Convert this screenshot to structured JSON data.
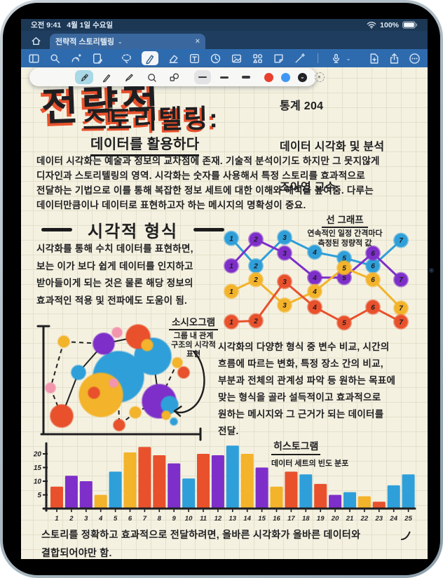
{
  "status_bar": {
    "time": "오전 9:41",
    "date": "4월 1일 수요일",
    "battery": "100%"
  },
  "tab_bar": {
    "title": "전략적 스토리텔링",
    "close": "×",
    "chevron": "⌄"
  },
  "palette": {
    "red": "#e8512c",
    "yellow": "#f3b32a",
    "blue": "#2f9fd9",
    "purple": "#7e2fc9",
    "pink": "#f295ad",
    "ink": "#1f1f21"
  },
  "note": {
    "title_line1": "전략적",
    "title_line2": "스토리텔링:",
    "subtitle": "데이터를 활용하다",
    "course": {
      "line1": "통계 204",
      "line2": "데이터 시각화 및 분석",
      "line3": "조아영 교수"
    },
    "intro": "데이터 시각화는 예술과 정보의 교차점에 존재. 기술적 분석이기도 하지만 그 못지않게\n디자인과 스토리텔링의 영역. 시각화는 숫자를 사용해서 특정 스토리를 효과적으로\n전달하는 기법으로 이를 통해 복잡한 정보 세트에 대한 이해와 해석을 높여줌. 다루는\n데이터만큼이나 데이터로 표현하고자 하는 메시지의 명확성이 중요.",
    "heading": "시각적 형식",
    "body2": "시각화를 통해 수치 데이터를 표현하면,\n보는 이가 보다 쉽게 데이터를 인지하고\n받아들이게 되는 것은 물론 해당 정보의\n효과적인 적용 및 전파에도 도움이 됨.",
    "line_chart": {
      "title": "선 그래프",
      "caption1": "연속적인 일정 간격마다",
      "caption2": "측정된 정량적 값"
    },
    "sociogram": {
      "title": "소시오그램",
      "cap1": "그룹 내 관계",
      "cap2": "구조의 시각적",
      "cap3": "표현"
    },
    "body3": "시각화의 다양한 형식 중 변수 비교, 시간의\n흐름에 따르는 변화, 특정 장소 간의 비교,\n부분과 전체의 관계성 파악 등 원하는 목표에\n맞는 형식을 골라 설득적이고 효과적으로\n원하는 메시지와 그 근거가 되는 데이터를\n전달.",
    "histogram": {
      "title": "히스토그램",
      "caption": "데이터 세트의 빈도 분포"
    },
    "outro": "스토리를 정확하고 효과적으로 전달하려면, 올바른 시각화가 올바른 데이터와\n결합되어야만 함."
  },
  "chart_data": [
    {
      "type": "line",
      "title": "선 그래프",
      "annotation": "연속적인 일정 간격마다 측정된 정량적 값",
      "x": [
        1,
        2,
        3,
        4,
        5,
        6,
        7
      ],
      "point_labels": [
        "1",
        "2",
        "3",
        "4",
        "5",
        "6",
        "7"
      ],
      "series": [
        {
          "name": "blue",
          "color_key": "blue",
          "values": [
            9.8,
            7.0,
            9.9,
            8.4,
            7.8,
            7.0,
            9.6
          ]
        },
        {
          "name": "purple",
          "color_key": "purple",
          "values": [
            7.0,
            9.7,
            8.3,
            5.8,
            5.8,
            8.3,
            5.6
          ]
        },
        {
          "name": "yellow",
          "color_key": "yellow",
          "values": [
            4.4,
            5.6,
            3.0,
            4.4,
            6.8,
            5.6,
            2.7
          ]
        },
        {
          "name": "red",
          "color_key": "red",
          "values": [
            1.3,
            1.4,
            5.4,
            2.8,
            1.2,
            2.8,
            1.3
          ]
        }
      ],
      "legend": "none",
      "grid": "paper-grid"
    },
    {
      "type": "network",
      "title": "소시오그램",
      "annotation": "그룹 내 관계 구조의 시각적 표현",
      "nodes": [
        [
          125,
          92,
          36,
          "blue"
        ],
        [
          100,
          118,
          31,
          "yellow"
        ],
        [
          174,
          63,
          26,
          "blue"
        ],
        [
          183,
          127,
          24,
          "purple"
        ],
        [
          153,
          35,
          17,
          "red"
        ],
        [
          104,
          45,
          15,
          "purple"
        ],
        [
          44,
          148,
          16,
          "red"
        ],
        [
          198,
          132,
          12,
          "blue"
        ],
        [
          68,
          86,
          10,
          "blue"
        ],
        [
          90,
          115,
          8,
          "red"
        ],
        [
          118,
          101,
          6,
          "pink"
        ],
        [
          166,
          47,
          8,
          "yellow"
        ],
        [
          123,
          29,
          7,
          "pink"
        ],
        [
          47,
          42,
          8,
          "yellow"
        ],
        [
          28,
          108,
          7,
          "pink"
        ],
        [
          209,
          72,
          7,
          "yellow"
        ],
        [
          218,
          86,
          8,
          "red"
        ],
        [
          149,
          143,
          8,
          "yellow"
        ],
        [
          126,
          161,
          8,
          "red"
        ],
        [
          193,
          147,
          6,
          "yellow"
        ],
        [
          204,
          156,
          5,
          "blue"
        ]
      ],
      "solid_edges": [
        [
          44,
          148,
          68,
          86
        ],
        [
          68,
          86,
          104,
          45
        ],
        [
          104,
          45,
          153,
          35
        ],
        [
          104,
          45,
          125,
          92
        ],
        [
          174,
          63,
          183,
          127
        ],
        [
          125,
          92,
          100,
          118
        ],
        [
          153,
          35,
          174,
          63
        ]
      ],
      "dashed_edges": [
        [
          47,
          42,
          104,
          45
        ],
        [
          47,
          42,
          28,
          108
        ],
        [
          28,
          108,
          44,
          148
        ],
        [
          125,
          118,
          126,
          161
        ],
        [
          149,
          143,
          126,
          161
        ],
        [
          149,
          143,
          183,
          127
        ],
        [
          183,
          127,
          209,
          72
        ],
        [
          209,
          72,
          218,
          86
        ]
      ]
    },
    {
      "type": "bar",
      "title": "히스토그램",
      "annotation": "데이터 세트의 빈도 분포",
      "categories": [
        1,
        2,
        3,
        4,
        5,
        6,
        7,
        8,
        9,
        10,
        11,
        12,
        13,
        14,
        15,
        16,
        17,
        18,
        19,
        20,
        21,
        22,
        23,
        24,
        25
      ],
      "values": [
        8,
        12,
        10,
        5,
        13.5,
        20.5,
        22.5,
        19.5,
        16.5,
        11,
        20,
        19.5,
        23,
        20,
        15,
        8,
        13.5,
        12.5,
        9,
        5,
        6,
        4.5,
        2.5,
        8.5,
        12.5
      ],
      "bar_colors": [
        "red",
        "purple",
        "purple",
        "yellow",
        "blue",
        "yellow",
        "red",
        "red",
        "purple",
        "blue",
        "red",
        "purple",
        "blue",
        "yellow",
        "purple",
        "yellow",
        "red",
        "blue",
        "red",
        "purple",
        "blue",
        "yellow",
        "red",
        "blue",
        "blue"
      ],
      "yticks": [
        5,
        10,
        15,
        20
      ],
      "ylim": [
        0,
        24
      ],
      "xlabel": "",
      "ylabel": "",
      "grid": "paper-grid",
      "legend": "none"
    }
  ]
}
